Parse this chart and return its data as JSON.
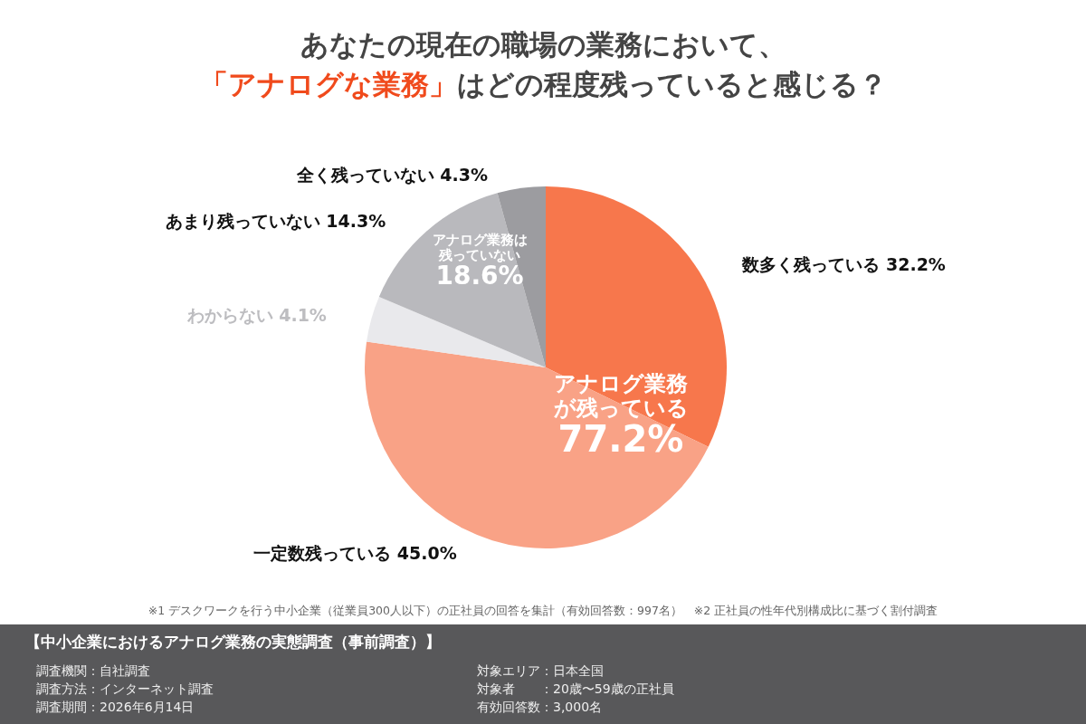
{
  "chart_data": {
    "type": "pie",
    "title": "あなたの現在の職場の業務において、",
    "subtitle": "「アナログな業務」はどの程度残っていると感じる？",
    "categories": [
      "数多く残っている",
      "一定数残っている",
      "わからない",
      "あまり残っていない",
      "全く残っていない"
    ],
    "values": [
      32.2,
      45.0,
      4.1,
      14.3,
      4.3
    ],
    "value_labels": [
      "32.2%",
      "45.0%",
      "4.1%",
      "14.3%",
      "4.3%"
    ],
    "colors": [
      "#f7774c",
      "#f9a286",
      "#e9e9ec",
      "#b9b9bd",
      "#9c9ca0"
    ],
    "legend": false,
    "annotations": [
      "アナログ業務が残っている",
      "77.2%",
      "アナログ業務は残っていない",
      "18.6%",
      "※1 デスクワークを行う中小企業（従業員300人以下）の正社員の回答を集計（有効回答数：997名）　※2 正社員の性年代別構成比に基づく割付調査",
      "【中小企業におけるアナログ業務の実態調査（事前調査）】",
      "調査機関：自社調査",
      "調査方法：インターネット調査",
      "調査期間：2026年6月14日",
      "対象エリア：日本全国",
      "対象者　　：20歳〜59歳の正社員",
      "有効回答数：3,000名"
    ]
  }
}
